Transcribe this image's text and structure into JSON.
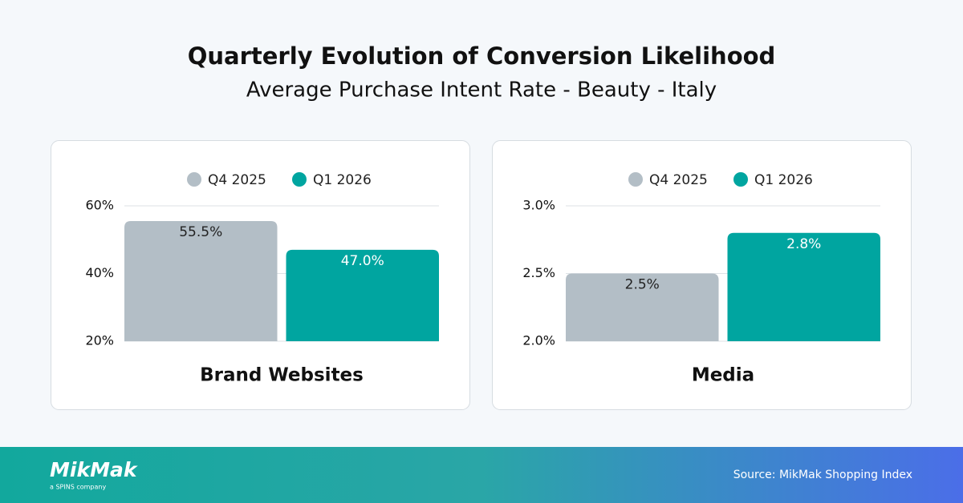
{
  "title": "Quarterly Evolution of Conversion Likelihood",
  "subtitle": "Average Purchase Intent Rate - Beauty - Italy",
  "logo": "MikMak",
  "logo_tagline": "a SPINS company",
  "source": "Source: MikMak Shopping Index",
  "chart_data": [
    {
      "type": "bar",
      "categories": [
        "Brand Websites"
      ],
      "series": [
        {
          "name": "Q4 2025",
          "color": "#b3bec6",
          "values": [
            55.5
          ],
          "value_labels": [
            "55.5%"
          ]
        },
        {
          "name": "Q1 2026",
          "color": "#00a5a0",
          "values": [
            47.0
          ],
          "value_labels": [
            "47.0%"
          ]
        }
      ],
      "ylim": [
        20,
        60
      ],
      "yticks": [
        {
          "value": 20,
          "label": "20%"
        },
        {
          "value": 40,
          "label": "40%"
        },
        {
          "value": 60,
          "label": "60%"
        }
      ],
      "grid": true
    },
    {
      "type": "bar",
      "categories": [
        "Media"
      ],
      "series": [
        {
          "name": "Q4 2025",
          "color": "#b3bec6",
          "values": [
            2.5
          ],
          "value_labels": [
            "2.5%"
          ]
        },
        {
          "name": "Q1 2026",
          "color": "#00a5a0",
          "values": [
            2.8
          ],
          "value_labels": [
            "2.8%"
          ]
        }
      ],
      "ylim": [
        2.0,
        3.0
      ],
      "yticks": [
        {
          "value": 2.0,
          "label": "2.0%"
        },
        {
          "value": 2.5,
          "label": "2.5%"
        },
        {
          "value": 3.0,
          "label": "3.0%"
        }
      ],
      "grid": true
    }
  ]
}
